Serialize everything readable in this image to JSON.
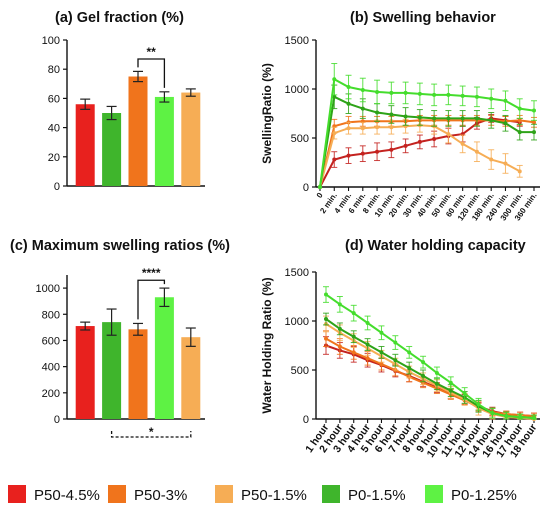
{
  "colors": {
    "P50-4.5%": "#e8211e",
    "P50-3%": "#f0741c",
    "P50-1.5%": "#f6ad55",
    "P0-1.5%": "#3fb52c",
    "P0-1.25%": "#5ef244",
    "P50-4.5%-line": "#c4221f",
    "P0-1.5%-line": "#2ea318",
    "P0-1.25%-line": "#44dd2c"
  },
  "legend": {
    "position": "bottom",
    "entries": [
      "P50-4.5%",
      "P50-3%",
      "P50-1.5%",
      "P0-1.5%",
      "P0-1.25%"
    ]
  },
  "chart_data": [
    {
      "id": "a",
      "type": "bar",
      "title": "(a)   Gel fraction (%)",
      "xlabel": "",
      "ylabel": "",
      "categories": [
        "P50-4.5%",
        "P0-1.5%",
        "P50-3%",
        "P0-1.25%",
        "P50-1.5%"
      ],
      "values": [
        56,
        50,
        75,
        61,
        64
      ],
      "errors": [
        3.5,
        4.5,
        3.5,
        3.5,
        2.5
      ],
      "ylim": [
        0,
        100
      ],
      "yticks": [
        0,
        20,
        40,
        60,
        80,
        100
      ],
      "significance": [
        {
          "from": 2,
          "to": 3,
          "label": "**",
          "y": 87
        }
      ]
    },
    {
      "id": "b",
      "type": "line",
      "title": "(b)      Swelling behavior",
      "xlabel": "",
      "ylabel": "SwellingRatio (%)",
      "x": [
        "0",
        "2 min.",
        "4 min.",
        "6 min.",
        "8 min.",
        "10 min.",
        "20 min.",
        "30 min.",
        "40 min.",
        "50 min.",
        "60 min.",
        "120 min.",
        "180 min.",
        "240 min.",
        "300 min.",
        "360 min."
      ],
      "ylim": [
        0,
        1500
      ],
      "yticks": [
        0,
        500,
        1000,
        1500
      ],
      "grid": false,
      "series": [
        {
          "name": "P50-4.5%",
          "values": [
            0,
            280,
            320,
            340,
            360,
            380,
            420,
            460,
            490,
            520,
            540,
            650,
            700,
            680,
            660,
            null
          ],
          "errors": [
            0,
            80,
            80,
            80,
            90,
            80,
            70,
            70,
            80,
            80,
            80,
            60,
            40,
            40,
            40,
            null
          ]
        },
        {
          "name": "P50-3%",
          "values": [
            0,
            620,
            660,
            670,
            670,
            670,
            670,
            680,
            680,
            680,
            680,
            680,
            680,
            670,
            680,
            660
          ],
          "errors": [
            0,
            70,
            60,
            50,
            50,
            50,
            50,
            50,
            50,
            50,
            50,
            50,
            50,
            50,
            50,
            50
          ]
        },
        {
          "name": "P50-1.5%",
          "values": [
            0,
            550,
            600,
            600,
            610,
            610,
            620,
            630,
            620,
            540,
            440,
            360,
            280,
            240,
            160,
            null
          ],
          "errors": [
            0,
            60,
            60,
            60,
            70,
            70,
            70,
            70,
            80,
            90,
            90,
            100,
            100,
            100,
            60,
            null
          ]
        },
        {
          "name": "P0-1.5%",
          "values": [
            0,
            920,
            850,
            800,
            760,
            740,
            720,
            710,
            700,
            700,
            700,
            700,
            680,
            650,
            560,
            560
          ],
          "errors": [
            0,
            120,
            100,
            100,
            90,
            90,
            90,
            80,
            80,
            80,
            80,
            80,
            80,
            80,
            80,
            80
          ]
        },
        {
          "name": "P0-1.25%",
          "values": [
            0,
            1100,
            1020,
            990,
            970,
            960,
            960,
            950,
            940,
            940,
            930,
            920,
            900,
            880,
            800,
            780
          ],
          "errors": [
            0,
            160,
            120,
            120,
            120,
            110,
            110,
            110,
            110,
            100,
            100,
            100,
            100,
            100,
            100,
            100
          ]
        }
      ]
    },
    {
      "id": "c",
      "type": "bar",
      "title": "(c) Maximum swelling ratios (%)",
      "xlabel": "",
      "ylabel": "",
      "categories": [
        "P50-4.5%",
        "P0-1.5%",
        "P50-3%",
        "P0-1.25%",
        "P50-1.5%"
      ],
      "values": [
        710,
        740,
        685,
        930,
        625
      ],
      "errors": [
        30,
        100,
        45,
        70,
        70
      ],
      "ylim": [
        0,
        1100
      ],
      "yticks": [
        0,
        200,
        400,
        600,
        800,
        1000
      ],
      "significance": [
        {
          "from": 2,
          "to": 3,
          "label": "****",
          "y": 1060
        }
      ],
      "bottom_bracket": {
        "from": 1,
        "to": 4,
        "label": "*"
      }
    },
    {
      "id": "d",
      "type": "line",
      "title": "(d)   Water holding capacity",
      "xlabel": "",
      "ylabel": "Water Holding Ratio  (%)",
      "x": [
        "1 hour",
        "2 hour",
        "3 hour",
        "4 hour",
        "5 hour",
        "6 hour",
        "7 hour",
        "8 hour",
        "9 hour",
        "10 hour",
        "11 hour",
        "12 hour",
        "14 hour",
        "16 hour",
        "17 hour",
        "18 hour"
      ],
      "ylim": [
        0,
        1500
      ],
      "yticks": [
        0,
        500,
        1000,
        1500
      ],
      "grid": false,
      "series": [
        {
          "name": "P50-4.5%",
          "values": [
            750,
            700,
            660,
            600,
            550,
            490,
            440,
            380,
            320,
            260,
            200,
            130,
            80,
            50,
            40,
            30
          ],
          "errors": [
            90,
            80,
            80,
            70,
            70,
            60,
            60,
            50,
            50,
            50,
            50,
            40,
            40,
            30,
            30,
            30
          ]
        },
        {
          "name": "P50-3%",
          "values": [
            820,
            740,
            680,
            620,
            560,
            500,
            430,
            370,
            310,
            250,
            190,
            120,
            70,
            50,
            40,
            30
          ],
          "errors": [
            80,
            80,
            70,
            70,
            60,
            60,
            50,
            50,
            50,
            50,
            40,
            40,
            40,
            30,
            30,
            30
          ]
        },
        {
          "name": "P50-1.5%",
          "values": [
            970,
            880,
            800,
            720,
            640,
            560,
            480,
            410,
            340,
            270,
            200,
            110,
            50,
            20,
            10,
            0
          ],
          "errors": [
            80,
            80,
            70,
            70,
            60,
            60,
            60,
            60,
            60,
            60,
            60,
            70,
            60,
            40,
            30,
            20
          ]
        },
        {
          "name": "P0-1.5%",
          "values": [
            1020,
            920,
            840,
            760,
            680,
            600,
            520,
            440,
            360,
            290,
            220,
            130,
            60,
            30,
            20,
            10
          ],
          "errors": [
            60,
            60,
            60,
            60,
            60,
            60,
            60,
            60,
            60,
            60,
            60,
            60,
            50,
            40,
            30,
            30
          ]
        },
        {
          "name": "P0-1.25%",
          "values": [
            1270,
            1170,
            1080,
            980,
            880,
            780,
            680,
            580,
            470,
            370,
            260,
            150,
            60,
            30,
            20,
            10
          ],
          "errors": [
            80,
            80,
            80,
            70,
            70,
            70,
            60,
            60,
            60,
            60,
            60,
            60,
            50,
            40,
            30,
            30
          ]
        }
      ]
    }
  ]
}
